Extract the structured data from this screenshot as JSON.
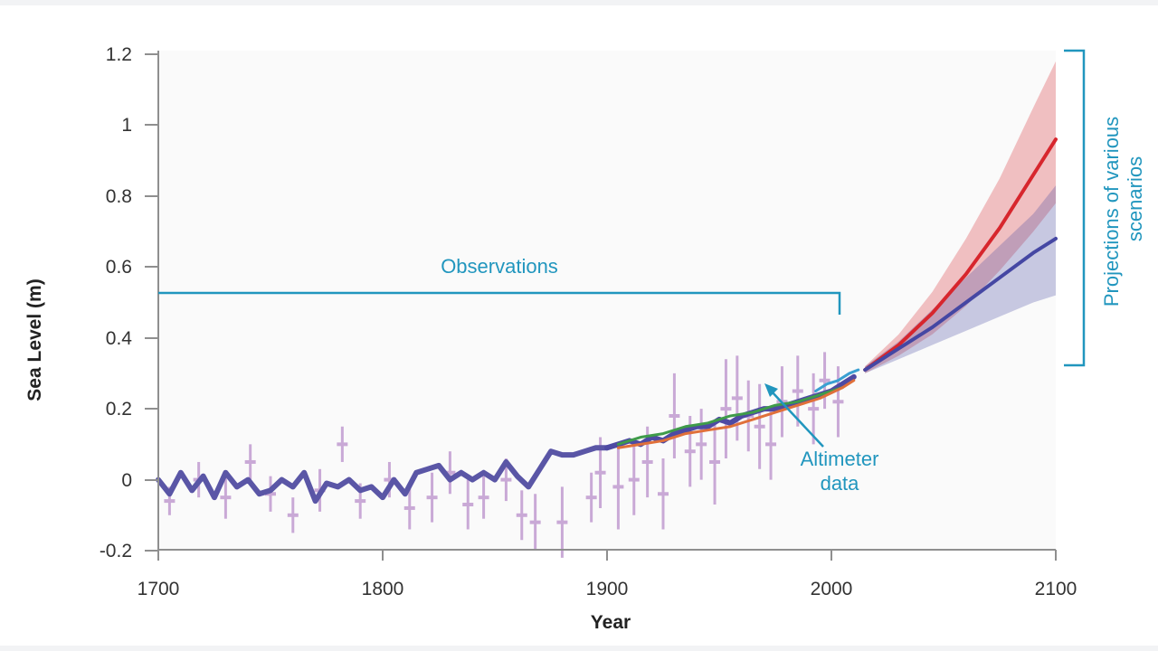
{
  "chart_data": {
    "type": "line",
    "xlabel": "Year",
    "ylabel": "Sea Level (m)",
    "xlim": [
      1700,
      2100
    ],
    "ylim": [
      -0.2,
      1.2
    ],
    "x_ticks": [
      "1700",
      "1800",
      "1900",
      "2000",
      "2100"
    ],
    "y_ticks": [
      "1.2",
      "1",
      "0.8",
      "0.6",
      "0.4",
      "0.2",
      "0",
      "-0.2"
    ],
    "grid": false,
    "annotations": {
      "observations": "Observations",
      "altimeter_line1": "Altimeter",
      "altimeter_line2": "data",
      "projections_line1": "Projections of various",
      "projections_line2": "scenarios"
    },
    "observations_span": [
      1700,
      2005
    ],
    "projections_span": [
      0.32,
      1.21
    ],
    "series": [
      {
        "key": "reconstruction",
        "color": "#5a56a6",
        "x": [
          1700,
          1705,
          1710,
          1715,
          1720,
          1725,
          1730,
          1735,
          1740,
          1745,
          1750,
          1755,
          1760,
          1765,
          1770,
          1775,
          1780,
          1785,
          1790,
          1795,
          1800,
          1805,
          1810,
          1815,
          1820,
          1825,
          1830,
          1835,
          1840,
          1845,
          1850,
          1855,
          1860,
          1865,
          1870,
          1875,
          1880,
          1885,
          1890,
          1895,
          1900
        ],
        "y": [
          0.0,
          -0.04,
          0.02,
          -0.03,
          0.01,
          -0.05,
          0.02,
          -0.02,
          0.0,
          -0.04,
          -0.03,
          0.0,
          -0.02,
          0.02,
          -0.06,
          -0.01,
          -0.02,
          0.0,
          -0.03,
          -0.02,
          -0.05,
          0.0,
          -0.04,
          0.02,
          0.03,
          0.04,
          0.0,
          0.02,
          0.0,
          0.02,
          0.0,
          0.05,
          0.01,
          -0.02,
          0.03,
          0.08,
          0.07,
          0.07,
          0.08,
          0.09,
          0.09
        ]
      },
      {
        "key": "reconstruction-recent",
        "color": "#4e4aa3",
        "x": [
          1900,
          1905,
          1910,
          1915,
          1920,
          1925,
          1930,
          1935,
          1940,
          1945,
          1950,
          1955,
          1960,
          1965,
          1970,
          1975,
          1980,
          1985,
          1990,
          1995,
          2000,
          2005,
          2010
        ],
        "y": [
          0.09,
          0.1,
          0.11,
          0.1,
          0.12,
          0.11,
          0.13,
          0.14,
          0.15,
          0.15,
          0.17,
          0.16,
          0.18,
          0.19,
          0.2,
          0.2,
          0.21,
          0.22,
          0.23,
          0.24,
          0.25,
          0.27,
          0.29
        ]
      },
      {
        "key": "tide-gauge-a",
        "color": "#3f9b4a",
        "x": [
          1905,
          1915,
          1925,
          1935,
          1945,
          1955,
          1965,
          1975,
          1985,
          1995,
          2005
        ],
        "y": [
          0.1,
          0.12,
          0.13,
          0.15,
          0.16,
          0.18,
          0.19,
          0.21,
          0.22,
          0.24,
          0.26
        ]
      },
      {
        "key": "tide-gauge-b",
        "color": "#e0703a",
        "x": [
          1905,
          1915,
          1925,
          1935,
          1945,
          1955,
          1965,
          1975,
          1985,
          1995,
          2005,
          2010
        ],
        "y": [
          0.09,
          0.1,
          0.11,
          0.13,
          0.14,
          0.15,
          0.17,
          0.19,
          0.21,
          0.23,
          0.26,
          0.28
        ]
      },
      {
        "key": "altimeter",
        "color": "#3aa0d2",
        "x": [
          1993,
          1998,
          2003,
          2008,
          2012
        ],
        "y": [
          0.25,
          0.27,
          0.28,
          0.3,
          0.31
        ]
      },
      {
        "key": "projection-high",
        "color": "#d7262d",
        "x": [
          2015,
          2030,
          2045,
          2060,
          2075,
          2090,
          2100
        ],
        "y": [
          0.31,
          0.38,
          0.47,
          0.58,
          0.71,
          0.86,
          0.96
        ],
        "band_low": [
          0.3,
          0.35,
          0.41,
          0.49,
          0.59,
          0.7,
          0.78
        ],
        "band_high": [
          0.32,
          0.41,
          0.53,
          0.68,
          0.85,
          1.05,
          1.18
        ]
      },
      {
        "key": "projection-low",
        "color": "#4547a3",
        "x": [
          2015,
          2030,
          2045,
          2060,
          2075,
          2090,
          2100
        ],
        "y": [
          0.31,
          0.37,
          0.43,
          0.5,
          0.57,
          0.64,
          0.68
        ],
        "band_low": [
          0.3,
          0.34,
          0.38,
          0.42,
          0.46,
          0.5,
          0.52
        ],
        "band_high": [
          0.32,
          0.39,
          0.48,
          0.57,
          0.66,
          0.75,
          0.83
        ]
      }
    ],
    "proxy_points": {
      "color": "#c9a9d6",
      "x": [
        1705,
        1718,
        1730,
        1741,
        1750,
        1760,
        1772,
        1782,
        1790,
        1803,
        1812,
        1822,
        1830,
        1838,
        1845,
        1855,
        1862,
        1868,
        1880,
        1893,
        1897,
        1905,
        1912,
        1918,
        1925,
        1930,
        1937,
        1942,
        1948,
        1953,
        1958,
        1963,
        1968,
        1973,
        1978,
        1985,
        1992,
        1997,
        2003
      ],
      "y": [
        -0.06,
        0.0,
        -0.05,
        0.05,
        -0.04,
        -0.1,
        -0.03,
        0.1,
        -0.06,
        0.0,
        -0.08,
        -0.05,
        0.02,
        -0.07,
        -0.05,
        0.0,
        -0.1,
        -0.12,
        -0.12,
        -0.05,
        0.02,
        -0.02,
        0.0,
        0.05,
        -0.04,
        0.18,
        0.08,
        0.1,
        0.05,
        0.2,
        0.23,
        0.18,
        0.15,
        0.1,
        0.22,
        0.25,
        0.2,
        0.28,
        0.22
      ],
      "err": [
        0.04,
        0.05,
        0.06,
        0.05,
        0.05,
        0.05,
        0.06,
        0.05,
        0.05,
        0.05,
        0.06,
        0.07,
        0.06,
        0.07,
        0.06,
        0.06,
        0.07,
        0.08,
        0.1,
        0.07,
        0.1,
        0.12,
        0.1,
        0.1,
        0.1,
        0.12,
        0.1,
        0.1,
        0.12,
        0.14,
        0.12,
        0.1,
        0.12,
        0.1,
        0.1,
        0.1,
        0.1,
        0.08,
        0.1
      ]
    }
  }
}
